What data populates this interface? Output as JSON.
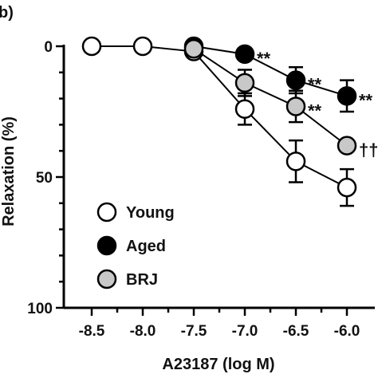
{
  "panel_label": "b)",
  "chart_data": {
    "type": "line",
    "xlabel": "A23187 (log M)",
    "ylabel": "Relaxation (%)",
    "xlim": [
      -8.7,
      -5.8
    ],
    "ylim": [
      0,
      100
    ],
    "y_inverted": true,
    "x_ticks": [
      "-8.5",
      "-8.0",
      "-7.5",
      "-7.0",
      "-6.5",
      "-6.0"
    ],
    "y_ticks": [
      "0",
      "50",
      "100"
    ],
    "legend_placement": "lower-left",
    "series": [
      {
        "name": "Young",
        "fill": "#ffffff",
        "x": [
          -8.5,
          -8.0,
          -7.5,
          -7.0,
          -6.5,
          -6.0
        ],
        "y": [
          0,
          0,
          2,
          24,
          44,
          54
        ],
        "err": [
          0,
          0,
          1.5,
          6,
          8,
          7
        ]
      },
      {
        "name": "Aged",
        "fill": "#000000",
        "x": [
          -7.5,
          -7.0,
          -6.5,
          -6.0
        ],
        "y": [
          0,
          3,
          13,
          19
        ],
        "err": [
          1,
          2,
          5,
          6
        ]
      },
      {
        "name": "BRJ",
        "fill": "#c8c8c8",
        "x": [
          -7.5,
          -7.0,
          -6.5,
          -6.0
        ],
        "y": [
          1,
          14,
          23,
          38
        ],
        "err": [
          1,
          5,
          6,
          2
        ]
      }
    ],
    "annotations": [
      {
        "text": "**",
        "x": -7.0,
        "y": 3
      },
      {
        "text": "**",
        "x": -6.5,
        "y": 13
      },
      {
        "text": "**",
        "x": -6.0,
        "y": 19
      },
      {
        "text": "**",
        "x": -6.5,
        "y": 23
      },
      {
        "text": "††",
        "x": -6.0,
        "y": 38
      }
    ]
  }
}
